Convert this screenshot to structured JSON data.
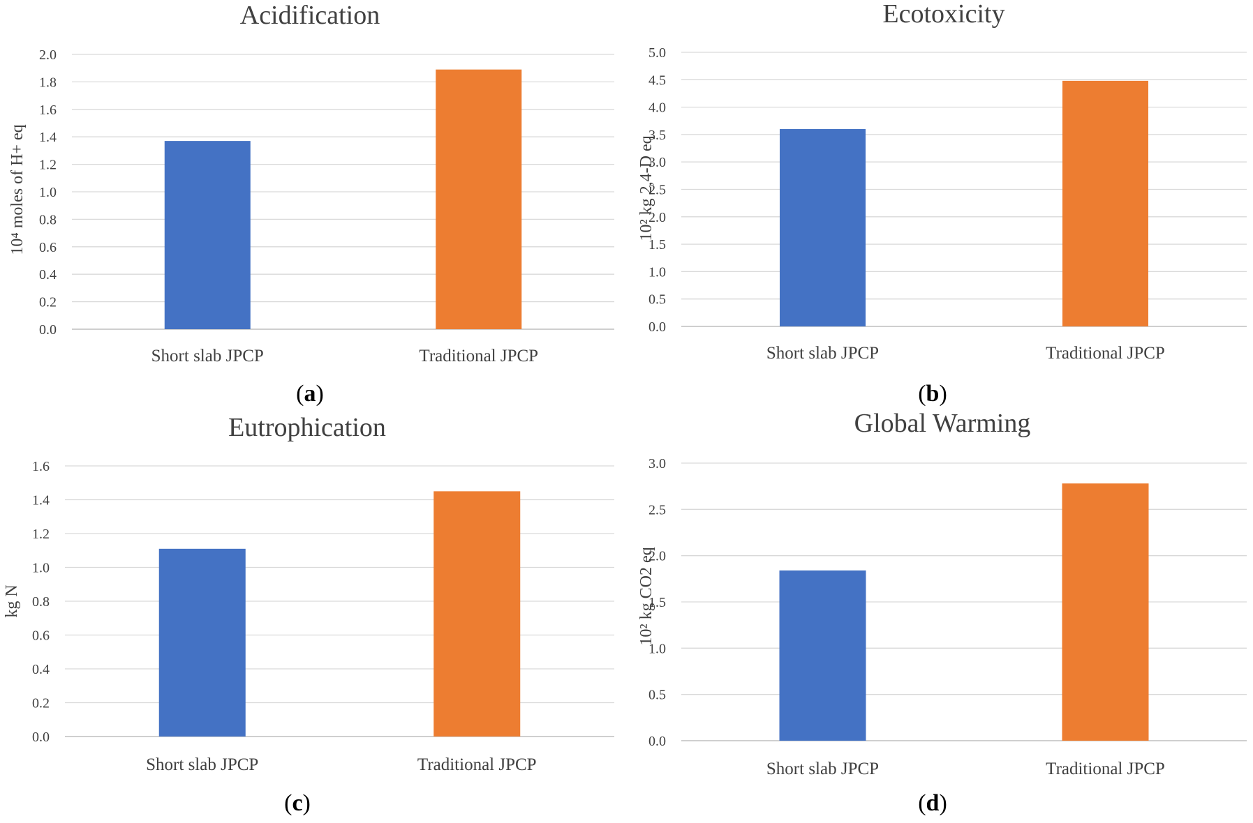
{
  "colors": {
    "short": "#4472c4",
    "traditional": "#ed7d31"
  },
  "chart_data": [
    {
      "type": "bar",
      "panel": "a",
      "caption_letter": "a",
      "title": "Acidification",
      "ylabel": "10⁴ moles of H+ eq",
      "xlabel": "",
      "categories": [
        "Short slab JPCP",
        "Traditional JPCP"
      ],
      "values": [
        1.37,
        1.89
      ],
      "ylim": [
        0,
        2.0
      ],
      "yticks": [
        "0.0",
        "0.2",
        "0.4",
        "0.6",
        "0.8",
        "1.0",
        "1.2",
        "1.4",
        "1.6",
        "1.8",
        "2.0"
      ],
      "grid": true
    },
    {
      "type": "bar",
      "panel": "b",
      "caption_letter": "b",
      "title": "Ecotoxicity",
      "ylabel": "10² kg 2,4-D eq",
      "xlabel": "",
      "categories": [
        "Short slab JPCP",
        "Traditional JPCP"
      ],
      "values": [
        3.6,
        4.48
      ],
      "ylim": [
        0,
        5.0
      ],
      "yticks": [
        "0.0",
        "0.5",
        "1.0",
        "1.5",
        "2.0",
        "2.5",
        "3.0",
        "3.5",
        "4.0",
        "4.5",
        "5.0"
      ],
      "grid": true
    },
    {
      "type": "bar",
      "panel": "c",
      "caption_letter": "c",
      "title": "Eutrophication",
      "ylabel": "kg N",
      "xlabel": "",
      "categories": [
        "Short slab JPCP",
        "Traditional JPCP"
      ],
      "values": [
        1.11,
        1.45
      ],
      "ylim": [
        0,
        1.6
      ],
      "yticks": [
        "0.0",
        "0.2",
        "0.4",
        "0.6",
        "0.8",
        "1.0",
        "1.2",
        "1.4",
        "1.6"
      ],
      "grid": true
    },
    {
      "type": "bar",
      "panel": "d",
      "caption_letter": "d",
      "title": "Global Warming",
      "ylabel": "10² kg CO2 eq",
      "xlabel": "",
      "categories": [
        "Short slab JPCP",
        "Traditional JPCP"
      ],
      "values": [
        1.84,
        2.78
      ],
      "ylim": [
        0,
        3.0
      ],
      "yticks": [
        "0.0",
        "0.5",
        "1.0",
        "1.5",
        "2.0",
        "2.5",
        "3.0"
      ],
      "grid": true
    }
  ]
}
